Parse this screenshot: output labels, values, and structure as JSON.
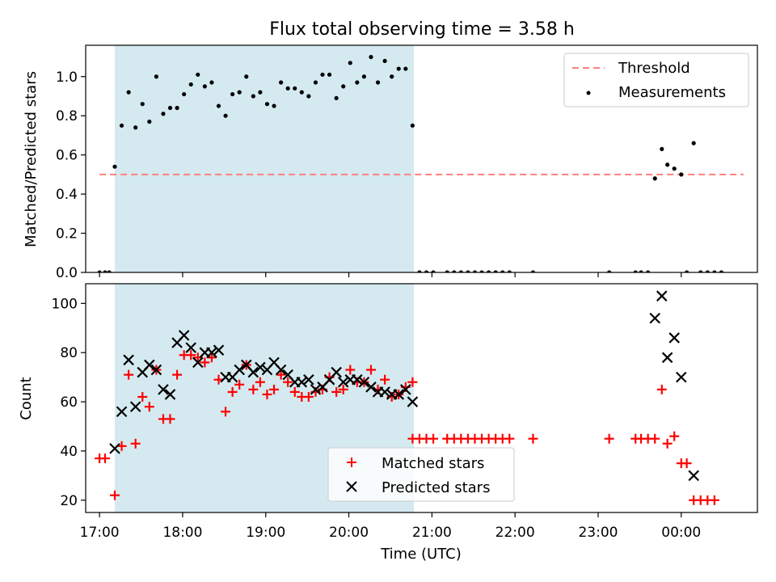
{
  "title": "Flux total observing time = 3.58 h",
  "chart_data": [
    {
      "type": "scatter",
      "xlabel": "",
      "ylabel": "Matched/Predicted stars",
      "xlim": [
        "16:50",
        "00:55"
      ],
      "ylim": [
        0,
        1.16
      ],
      "yticks": [
        "0.0",
        "0.2",
        "0.4",
        "0.6",
        "0.8",
        "1.0"
      ],
      "ytick_values": [
        0,
        0.2,
        0.4,
        0.6,
        0.8,
        1.0
      ],
      "shaded_interval": [
        "17:11",
        "20:47"
      ],
      "shade_color": "#d4eaf0",
      "legend": {
        "placement": "top-right",
        "entries": [
          "Threshold",
          "Measurements"
        ]
      },
      "series": [
        {
          "name": "Threshold",
          "style": "dashed-line",
          "color": "#ff7f7f",
          "x": [
            "17:00",
            "00:45"
          ],
          "y": [
            0.5,
            0.5
          ]
        },
        {
          "name": "Measurements",
          "style": "dot",
          "color": "#000000",
          "points": [
            [
              "17:00",
              0
            ],
            [
              "17:04",
              0
            ],
            [
              "17:07",
              0
            ],
            [
              "17:11",
              0.54
            ],
            [
              "17:16",
              0.75
            ],
            [
              "17:21",
              0.92
            ],
            [
              "17:26",
              0.74
            ],
            [
              "17:31",
              0.86
            ],
            [
              "17:36",
              0.77
            ],
            [
              "17:41",
              1.0
            ],
            [
              "17:46",
              0.81
            ],
            [
              "17:51",
              0.84
            ],
            [
              "17:56",
              0.84
            ],
            [
              "18:01",
              0.91
            ],
            [
              "18:06",
              0.96
            ],
            [
              "18:11",
              1.01
            ],
            [
              "18:16",
              0.95
            ],
            [
              "18:21",
              0.97
            ],
            [
              "18:26",
              0.85
            ],
            [
              "18:31",
              0.8
            ],
            [
              "18:36",
              0.91
            ],
            [
              "18:41",
              0.92
            ],
            [
              "18:46",
              1.0
            ],
            [
              "18:51",
              0.9
            ],
            [
              "18:56",
              0.92
            ],
            [
              "19:01",
              0.86
            ],
            [
              "19:06",
              0.85
            ],
            [
              "19:11",
              0.97
            ],
            [
              "19:16",
              0.94
            ],
            [
              "19:21",
              0.94
            ],
            [
              "19:26",
              0.92
            ],
            [
              "19:31",
              0.9
            ],
            [
              "19:36",
              0.97
            ],
            [
              "19:41",
              1.01
            ],
            [
              "19:46",
              1.01
            ],
            [
              "19:51",
              0.89
            ],
            [
              "19:56",
              0.95
            ],
            [
              "20:01",
              1.07
            ],
            [
              "20:06",
              0.97
            ],
            [
              "20:11",
              1.0
            ],
            [
              "20:16",
              1.1
            ],
            [
              "20:21",
              0.97
            ],
            [
              "20:26",
              1.08
            ],
            [
              "20:31",
              1.0
            ],
            [
              "20:36",
              1.04
            ],
            [
              "20:41",
              1.04
            ],
            [
              "20:46",
              0.75
            ],
            [
              "20:51",
              0
            ],
            [
              "20:56",
              0
            ],
            [
              "21:01",
              0
            ],
            [
              "21:11",
              0
            ],
            [
              "21:16",
              0
            ],
            [
              "21:21",
              0
            ],
            [
              "21:26",
              0
            ],
            [
              "21:31",
              0
            ],
            [
              "21:36",
              0
            ],
            [
              "21:41",
              0
            ],
            [
              "21:46",
              0
            ],
            [
              "21:51",
              0
            ],
            [
              "21:56",
              0
            ],
            [
              "22:13",
              0
            ],
            [
              "23:08",
              0
            ],
            [
              "23:27",
              0
            ],
            [
              "23:31",
              0
            ],
            [
              "23:36",
              0
            ],
            [
              "23:41",
              0.48
            ],
            [
              "23:46",
              0.63
            ],
            [
              "23:50",
              0.55
            ],
            [
              "23:55",
              0.53
            ],
            [
              "00:00",
              0.5
            ],
            [
              "00:04",
              0
            ],
            [
              "00:09",
              0.66
            ],
            [
              "00:14",
              0
            ],
            [
              "00:19",
              0
            ],
            [
              "00:24",
              0
            ],
            [
              "00:29",
              0
            ]
          ]
        }
      ]
    },
    {
      "type": "scatter",
      "xlabel": "Time (UTC)",
      "ylabel": "Count",
      "xlim": [
        "16:50",
        "00:55"
      ],
      "ylim": [
        15,
        108
      ],
      "yticks": [
        "20",
        "40",
        "60",
        "80",
        "100"
      ],
      "ytick_values": [
        20,
        40,
        60,
        80,
        100
      ],
      "xticks": [
        "17:00",
        "18:00",
        "19:00",
        "20:00",
        "21:00",
        "22:00",
        "23:00",
        "00:00"
      ],
      "shaded_interval": [
        "17:11",
        "20:47"
      ],
      "shade_color": "#d4eaf0",
      "legend": {
        "placement": "bottom-center",
        "entries": [
          "Matched stars",
          "Predicted stars"
        ]
      },
      "series": [
        {
          "name": "Matched stars",
          "marker": "plus",
          "color": "#ff0000",
          "points": [
            [
              "17:00",
              37
            ],
            [
              "17:04",
              37
            ],
            [
              "17:11",
              22
            ],
            [
              "17:16",
              42
            ],
            [
              "17:21",
              71
            ],
            [
              "17:26",
              43
            ],
            [
              "17:31",
              62
            ],
            [
              "17:36",
              58
            ],
            [
              "17:41",
              73
            ],
            [
              "17:46",
              53
            ],
            [
              "17:51",
              53
            ],
            [
              "17:56",
              71
            ],
            [
              "18:01",
              79
            ],
            [
              "18:06",
              79
            ],
            [
              "18:11",
              78
            ],
            [
              "18:16",
              76
            ],
            [
              "18:21",
              78
            ],
            [
              "18:26",
              69
            ],
            [
              "18:31",
              56
            ],
            [
              "18:36",
              64
            ],
            [
              "18:41",
              67
            ],
            [
              "18:46",
              75
            ],
            [
              "18:51",
              65
            ],
            [
              "18:56",
              68
            ],
            [
              "19:01",
              63
            ],
            [
              "19:06",
              65
            ],
            [
              "19:11",
              71
            ],
            [
              "19:16",
              68
            ],
            [
              "19:21",
              64
            ],
            [
              "19:26",
              62
            ],
            [
              "19:31",
              62
            ],
            [
              "19:36",
              64
            ],
            [
              "19:41",
              65
            ],
            [
              "19:46",
              70
            ],
            [
              "19:51",
              64
            ],
            [
              "19:56",
              65
            ],
            [
              "20:01",
              73
            ],
            [
              "20:06",
              68
            ],
            [
              "20:11",
              68
            ],
            [
              "20:16",
              73
            ],
            [
              "20:21",
              65
            ],
            [
              "20:26",
              69
            ],
            [
              "20:31",
              62
            ],
            [
              "20:36",
              63
            ],
            [
              "20:41",
              66
            ],
            [
              "20:46",
              68
            ],
            [
              "20:46",
              45
            ],
            [
              "20:51",
              45
            ],
            [
              "20:56",
              45
            ],
            [
              "21:01",
              45
            ],
            [
              "21:11",
              45
            ],
            [
              "21:16",
              45
            ],
            [
              "21:21",
              45
            ],
            [
              "21:26",
              45
            ],
            [
              "21:31",
              45
            ],
            [
              "21:36",
              45
            ],
            [
              "21:41",
              45
            ],
            [
              "21:46",
              45
            ],
            [
              "21:51",
              45
            ],
            [
              "21:56",
              45
            ],
            [
              "22:13",
              45
            ],
            [
              "23:08",
              45
            ],
            [
              "23:27",
              45
            ],
            [
              "23:31",
              45
            ],
            [
              "23:36",
              45
            ],
            [
              "23:41",
              45
            ],
            [
              "23:46",
              65
            ],
            [
              "23:50",
              43
            ],
            [
              "23:55",
              46
            ],
            [
              "00:00",
              35
            ],
            [
              "00:04",
              35
            ],
            [
              "00:09",
              20
            ],
            [
              "00:14",
              20
            ],
            [
              "00:19",
              20
            ],
            [
              "00:24",
              20
            ]
          ]
        },
        {
          "name": "Predicted stars",
          "marker": "x",
          "color": "#000000",
          "points": [
            [
              "17:11",
              41
            ],
            [
              "17:16",
              56
            ],
            [
              "17:21",
              77
            ],
            [
              "17:26",
              58
            ],
            [
              "17:31",
              72
            ],
            [
              "17:36",
              75
            ],
            [
              "17:41",
              73
            ],
            [
              "17:46",
              65
            ],
            [
              "17:51",
              63
            ],
            [
              "17:56",
              84
            ],
            [
              "18:01",
              87
            ],
            [
              "18:06",
              82
            ],
            [
              "18:11",
              76
            ],
            [
              "18:16",
              80
            ],
            [
              "18:21",
              80
            ],
            [
              "18:26",
              81
            ],
            [
              "18:31",
              70
            ],
            [
              "18:36",
              70
            ],
            [
              "18:41",
              73
            ],
            [
              "18:46",
              75
            ],
            [
              "18:51",
              72
            ],
            [
              "18:56",
              74
            ],
            [
              "19:01",
              73
            ],
            [
              "19:06",
              76
            ],
            [
              "19:11",
              73
            ],
            [
              "19:16",
              71
            ],
            [
              "19:21",
              68
            ],
            [
              "19:26",
              68
            ],
            [
              "19:31",
              69
            ],
            [
              "19:36",
              65
            ],
            [
              "19:41",
              66
            ],
            [
              "19:46",
              69
            ],
            [
              "19:51",
              72
            ],
            [
              "19:56",
              68
            ],
            [
              "20:01",
              69
            ],
            [
              "20:06",
              69
            ],
            [
              "20:11",
              68
            ],
            [
              "20:16",
              66
            ],
            [
              "20:21",
              64
            ],
            [
              "20:26",
              64
            ],
            [
              "20:31",
              63
            ],
            [
              "20:36",
              63
            ],
            [
              "20:41",
              65
            ],
            [
              "20:46",
              60
            ],
            [
              "23:41",
              94
            ],
            [
              "23:46",
              103
            ],
            [
              "23:50",
              78
            ],
            [
              "23:55",
              86
            ],
            [
              "00:00",
              70
            ],
            [
              "00:09",
              30
            ]
          ]
        }
      ]
    }
  ]
}
